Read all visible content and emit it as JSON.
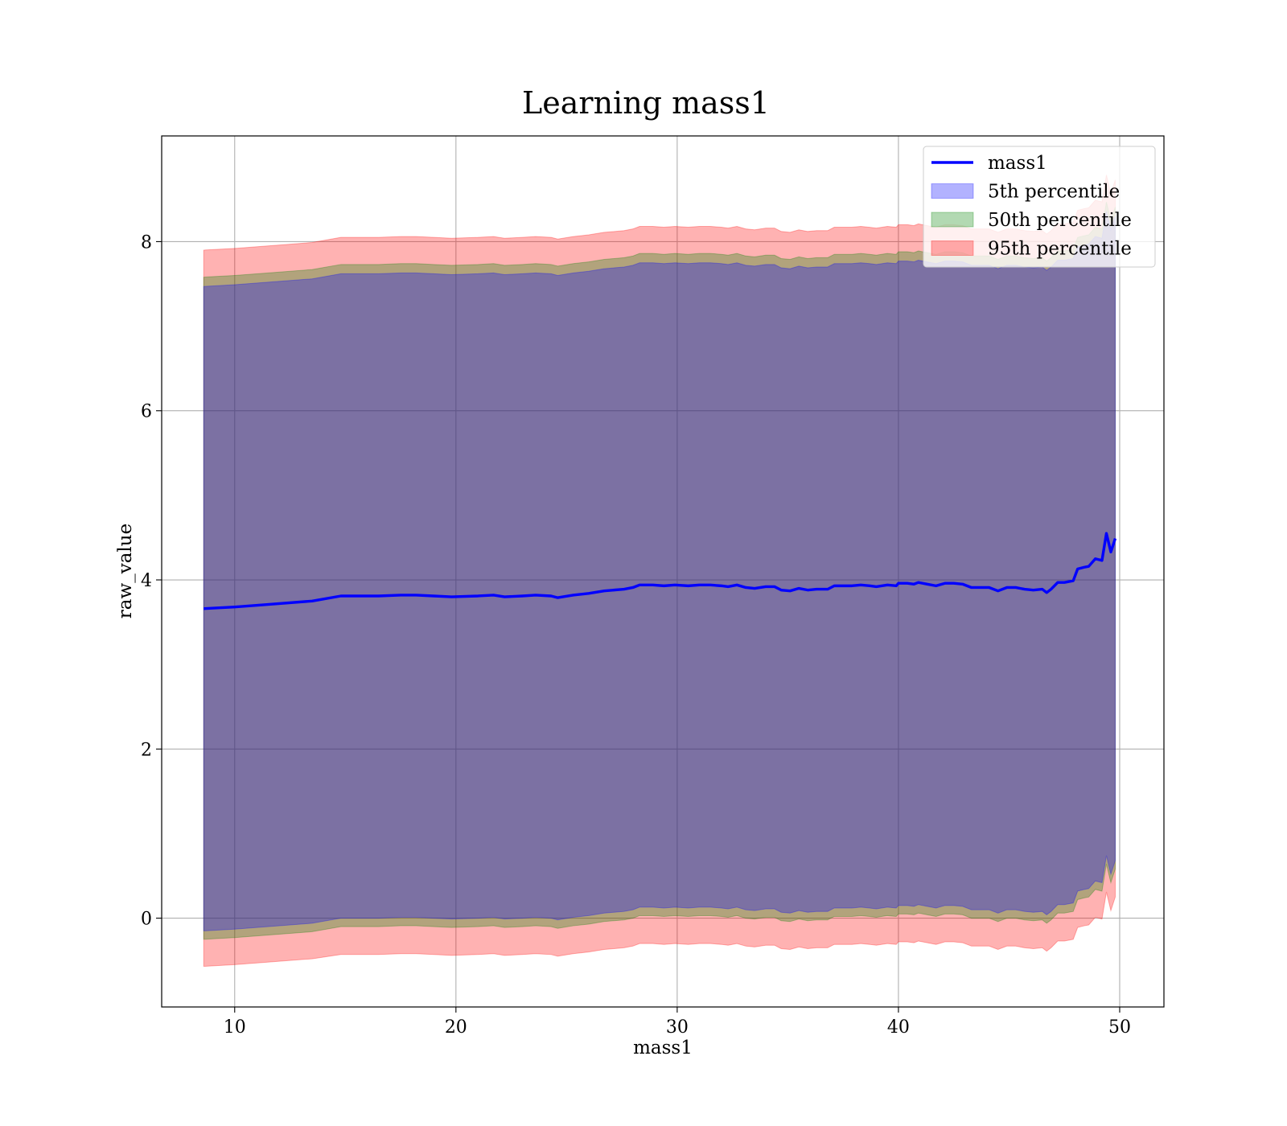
{
  "chart_data": {
    "type": "line",
    "title": "Learning mass1",
    "xlabel": "mass1",
    "ylabel": "raw_value",
    "xlim": [
      6.7,
      52.0
    ],
    "ylim": [
      -1.05,
      9.25
    ],
    "xticks": [
      10,
      20,
      30,
      40,
      50
    ],
    "yticks": [
      0,
      2,
      4,
      6,
      8
    ],
    "grid": true,
    "legend_position": "top-right",
    "colors": {
      "line": "#0000ff",
      "p5": "#0000ff",
      "p50": "#008000",
      "p95": "#ff0000"
    },
    "line_series": {
      "name": "mass1",
      "x": [
        8.6,
        10.0,
        11.5,
        13.5,
        14.8,
        16.5,
        17.5,
        18.2,
        19.0,
        19.8,
        21.0,
        21.7,
        22.2,
        23.0,
        23.6,
        24.3,
        24.6,
        25.3,
        26.0,
        26.7,
        27.6,
        28.0,
        28.3,
        28.9,
        29.4,
        29.9,
        30.5,
        31.0,
        31.5,
        32.0,
        32.3,
        32.7,
        33.1,
        33.5,
        34.0,
        34.4,
        34.7,
        35.1,
        35.5,
        35.9,
        36.3,
        36.8,
        37.1,
        37.5,
        37.9,
        38.3,
        38.7,
        39.0,
        39.5,
        39.9,
        40.0,
        40.4,
        40.7,
        40.9,
        41.3,
        41.7,
        42.1,
        42.5,
        42.9,
        43.3,
        43.7,
        44.1,
        44.5,
        44.9,
        45.3,
        45.7,
        46.1,
        46.5,
        46.7,
        46.9,
        47.2,
        47.5,
        47.9,
        48.1,
        48.4,
        48.6,
        48.9,
        49.2,
        49.4,
        49.6,
        49.8
      ],
      "y": [
        3.66,
        3.68,
        3.71,
        3.75,
        3.81,
        3.81,
        3.82,
        3.82,
        3.81,
        3.8,
        3.81,
        3.82,
        3.8,
        3.81,
        3.82,
        3.81,
        3.79,
        3.82,
        3.84,
        3.87,
        3.89,
        3.91,
        3.94,
        3.94,
        3.93,
        3.94,
        3.93,
        3.94,
        3.94,
        3.93,
        3.92,
        3.94,
        3.91,
        3.9,
        3.92,
        3.92,
        3.88,
        3.87,
        3.9,
        3.88,
        3.89,
        3.89,
        3.93,
        3.93,
        3.93,
        3.94,
        3.93,
        3.92,
        3.94,
        3.93,
        3.96,
        3.96,
        3.95,
        3.97,
        3.95,
        3.93,
        3.96,
        3.96,
        3.95,
        3.91,
        3.91,
        3.91,
        3.87,
        3.91,
        3.91,
        3.89,
        3.88,
        3.89,
        3.85,
        3.89,
        3.97,
        3.97,
        3.99,
        4.13,
        4.15,
        4.16,
        4.25,
        4.23,
        4.55,
        4.33,
        4.49
      ]
    },
    "bands": [
      {
        "name": "95th percentile",
        "opacity": 0.3,
        "x": [
          8.6,
          10.0,
          11.5,
          13.5,
          14.8,
          16.5,
          17.5,
          18.2,
          19.0,
          19.8,
          21.0,
          21.7,
          22.2,
          23.0,
          23.6,
          24.3,
          24.6,
          25.3,
          26.0,
          26.7,
          27.6,
          28.0,
          28.3,
          28.9,
          29.4,
          29.9,
          30.5,
          31.0,
          31.5,
          32.0,
          32.3,
          32.7,
          33.1,
          33.5,
          34.0,
          34.4,
          34.7,
          35.1,
          35.5,
          35.9,
          36.3,
          36.8,
          37.1,
          37.5,
          37.9,
          38.3,
          38.7,
          39.0,
          39.5,
          39.9,
          40.0,
          40.4,
          40.7,
          40.9,
          41.3,
          41.7,
          42.1,
          42.5,
          42.9,
          43.3,
          43.7,
          44.1,
          44.5,
          44.9,
          45.3,
          45.7,
          46.1,
          46.5,
          46.7,
          46.9,
          47.2,
          47.5,
          47.9,
          48.1,
          48.4,
          48.6,
          48.9,
          49.2,
          49.4,
          49.6,
          49.8
        ],
        "lower": [
          -0.57,
          -0.55,
          -0.52,
          -0.48,
          -0.43,
          -0.43,
          -0.42,
          -0.42,
          -0.43,
          -0.44,
          -0.43,
          -0.42,
          -0.44,
          -0.43,
          -0.42,
          -0.43,
          -0.45,
          -0.42,
          -0.4,
          -0.37,
          -0.35,
          -0.33,
          -0.3,
          -0.3,
          -0.31,
          -0.3,
          -0.31,
          -0.3,
          -0.3,
          -0.31,
          -0.32,
          -0.3,
          -0.33,
          -0.34,
          -0.32,
          -0.32,
          -0.36,
          -0.37,
          -0.34,
          -0.36,
          -0.35,
          -0.35,
          -0.31,
          -0.31,
          -0.31,
          -0.3,
          -0.31,
          -0.32,
          -0.3,
          -0.31,
          -0.28,
          -0.28,
          -0.29,
          -0.27,
          -0.29,
          -0.31,
          -0.28,
          -0.28,
          -0.29,
          -0.33,
          -0.33,
          -0.33,
          -0.37,
          -0.33,
          -0.33,
          -0.35,
          -0.36,
          -0.35,
          -0.39,
          -0.35,
          -0.27,
          -0.27,
          -0.25,
          -0.11,
          -0.09,
          -0.08,
          0.01,
          -0.01,
          0.31,
          0.09,
          0.25
        ],
        "upper": [
          7.9,
          7.92,
          7.95,
          7.99,
          8.05,
          8.05,
          8.06,
          8.06,
          8.05,
          8.04,
          8.05,
          8.06,
          8.04,
          8.05,
          8.06,
          8.05,
          8.03,
          8.06,
          8.08,
          8.11,
          8.13,
          8.15,
          8.18,
          8.18,
          8.17,
          8.18,
          8.17,
          8.18,
          8.18,
          8.17,
          8.16,
          8.18,
          8.15,
          8.14,
          8.16,
          8.16,
          8.12,
          8.11,
          8.14,
          8.12,
          8.13,
          8.13,
          8.17,
          8.17,
          8.17,
          8.18,
          8.17,
          8.16,
          8.18,
          8.17,
          8.2,
          8.2,
          8.19,
          8.21,
          8.19,
          8.17,
          8.2,
          8.2,
          8.19,
          8.15,
          8.15,
          8.15,
          8.11,
          8.15,
          8.15,
          8.13,
          8.12,
          8.13,
          8.09,
          8.13,
          8.21,
          8.21,
          8.23,
          8.37,
          8.39,
          8.4,
          8.49,
          8.47,
          8.79,
          8.57,
          8.73
        ]
      },
      {
        "name": "50th percentile",
        "opacity": 0.3,
        "x": [
          8.6,
          10.0,
          11.5,
          13.5,
          14.8,
          16.5,
          17.5,
          18.2,
          19.0,
          19.8,
          21.0,
          21.7,
          22.2,
          23.0,
          23.6,
          24.3,
          24.6,
          25.3,
          26.0,
          26.7,
          27.6,
          28.0,
          28.3,
          28.9,
          29.4,
          29.9,
          30.5,
          31.0,
          31.5,
          32.0,
          32.3,
          32.7,
          33.1,
          33.5,
          34.0,
          34.4,
          34.7,
          35.1,
          35.5,
          35.9,
          36.3,
          36.8,
          37.1,
          37.5,
          37.9,
          38.3,
          38.7,
          39.0,
          39.5,
          39.9,
          40.0,
          40.4,
          40.7,
          40.9,
          41.3,
          41.7,
          42.1,
          42.5,
          42.9,
          43.3,
          43.7,
          44.1,
          44.5,
          44.9,
          45.3,
          45.7,
          46.1,
          46.5,
          46.7,
          46.9,
          47.2,
          47.5,
          47.9,
          48.1,
          48.4,
          48.6,
          48.9,
          49.2,
          49.4,
          49.6,
          49.8
        ],
        "lower": [
          -0.25,
          -0.23,
          -0.2,
          -0.16,
          -0.1,
          -0.1,
          -0.09,
          -0.09,
          -0.1,
          -0.11,
          -0.1,
          -0.09,
          -0.11,
          -0.1,
          -0.09,
          -0.1,
          -0.12,
          -0.09,
          -0.07,
          -0.04,
          -0.02,
          0.0,
          0.03,
          0.03,
          0.02,
          0.03,
          0.02,
          0.03,
          0.03,
          0.02,
          0.01,
          0.03,
          0.0,
          -0.01,
          0.01,
          0.01,
          -0.03,
          -0.04,
          -0.01,
          -0.03,
          -0.02,
          -0.02,
          0.02,
          0.02,
          0.02,
          0.03,
          0.02,
          0.01,
          0.03,
          0.02,
          0.05,
          0.05,
          0.04,
          0.06,
          0.04,
          0.02,
          0.05,
          0.05,
          0.04,
          0.0,
          0.0,
          0.0,
          -0.04,
          0.0,
          0.0,
          -0.02,
          -0.03,
          -0.02,
          -0.06,
          -0.02,
          0.06,
          0.06,
          0.08,
          0.22,
          0.24,
          0.25,
          0.34,
          0.32,
          0.64,
          0.42,
          0.58
        ],
        "upper": [
          7.58,
          7.6,
          7.63,
          7.67,
          7.73,
          7.73,
          7.74,
          7.74,
          7.73,
          7.72,
          7.73,
          7.74,
          7.72,
          7.73,
          7.74,
          7.73,
          7.71,
          7.74,
          7.76,
          7.79,
          7.81,
          7.83,
          7.86,
          7.86,
          7.85,
          7.86,
          7.85,
          7.86,
          7.86,
          7.85,
          7.84,
          7.86,
          7.83,
          7.82,
          7.84,
          7.84,
          7.8,
          7.79,
          7.82,
          7.8,
          7.81,
          7.81,
          7.85,
          7.85,
          7.85,
          7.86,
          7.85,
          7.84,
          7.86,
          7.85,
          7.88,
          7.88,
          7.87,
          7.89,
          7.87,
          7.85,
          7.88,
          7.88,
          7.87,
          7.83,
          7.83,
          7.83,
          7.79,
          7.83,
          7.83,
          7.81,
          7.8,
          7.81,
          7.77,
          7.81,
          7.89,
          7.89,
          7.91,
          8.05,
          8.07,
          8.08,
          8.17,
          8.15,
          8.47,
          8.25,
          8.41
        ]
      },
      {
        "name": "5th percentile",
        "opacity": 0.3,
        "x": [
          8.6,
          10.0,
          11.5,
          13.5,
          14.8,
          16.5,
          17.5,
          18.2,
          19.0,
          19.8,
          21.0,
          21.7,
          22.2,
          23.0,
          23.6,
          24.3,
          24.6,
          25.3,
          26.0,
          26.7,
          27.6,
          28.0,
          28.3,
          28.9,
          29.4,
          29.9,
          30.5,
          31.0,
          31.5,
          32.0,
          32.3,
          32.7,
          33.1,
          33.5,
          34.0,
          34.4,
          34.7,
          35.1,
          35.5,
          35.9,
          36.3,
          36.8,
          37.1,
          37.5,
          37.9,
          38.3,
          38.7,
          39.0,
          39.5,
          39.9,
          40.0,
          40.4,
          40.7,
          40.9,
          41.3,
          41.7,
          42.1,
          42.5,
          42.9,
          43.3,
          43.7,
          44.1,
          44.5,
          44.9,
          45.3,
          45.7,
          46.1,
          46.5,
          46.7,
          46.9,
          47.2,
          47.5,
          47.9,
          48.1,
          48.4,
          48.6,
          48.9,
          49.2,
          49.4,
          49.6,
          49.8
        ],
        "lower": [
          -0.15,
          -0.13,
          -0.1,
          -0.06,
          0.0,
          0.0,
          0.01,
          0.01,
          0.0,
          -0.01,
          0.0,
          0.01,
          -0.01,
          0.0,
          0.01,
          0.0,
          -0.02,
          0.01,
          0.03,
          0.06,
          0.08,
          0.1,
          0.13,
          0.13,
          0.12,
          0.13,
          0.12,
          0.13,
          0.13,
          0.12,
          0.11,
          0.13,
          0.1,
          0.09,
          0.11,
          0.11,
          0.07,
          0.06,
          0.09,
          0.07,
          0.08,
          0.08,
          0.12,
          0.12,
          0.12,
          0.13,
          0.12,
          0.11,
          0.13,
          0.12,
          0.15,
          0.15,
          0.14,
          0.16,
          0.14,
          0.12,
          0.15,
          0.15,
          0.14,
          0.1,
          0.1,
          0.1,
          0.06,
          0.1,
          0.1,
          0.08,
          0.07,
          0.08,
          0.04,
          0.08,
          0.16,
          0.16,
          0.18,
          0.32,
          0.34,
          0.35,
          0.44,
          0.42,
          0.74,
          0.52,
          0.68
        ],
        "upper": [
          7.47,
          7.49,
          7.52,
          7.56,
          7.62,
          7.62,
          7.63,
          7.63,
          7.62,
          7.61,
          7.62,
          7.63,
          7.61,
          7.62,
          7.63,
          7.62,
          7.6,
          7.63,
          7.65,
          7.68,
          7.7,
          7.72,
          7.75,
          7.75,
          7.74,
          7.75,
          7.74,
          7.75,
          7.75,
          7.74,
          7.73,
          7.75,
          7.72,
          7.71,
          7.73,
          7.73,
          7.69,
          7.68,
          7.71,
          7.69,
          7.7,
          7.7,
          7.74,
          7.74,
          7.74,
          7.75,
          7.74,
          7.73,
          7.75,
          7.74,
          7.77,
          7.77,
          7.76,
          7.78,
          7.76,
          7.74,
          7.77,
          7.77,
          7.76,
          7.72,
          7.72,
          7.72,
          7.68,
          7.72,
          7.72,
          7.7,
          7.69,
          7.7,
          7.66,
          7.7,
          7.78,
          7.78,
          7.8,
          7.94,
          7.96,
          7.97,
          8.06,
          8.04,
          8.36,
          8.14,
          8.3
        ]
      }
    ],
    "legend": [
      {
        "label": "mass1",
        "kind": "line",
        "color": "#0000ff"
      },
      {
        "label": "5th percentile",
        "kind": "patch",
        "color": "#0000ff"
      },
      {
        "label": "50th percentile",
        "kind": "patch",
        "color": "#008000"
      },
      {
        "label": "95th percentile",
        "kind": "patch",
        "color": "#ff0000"
      }
    ]
  }
}
